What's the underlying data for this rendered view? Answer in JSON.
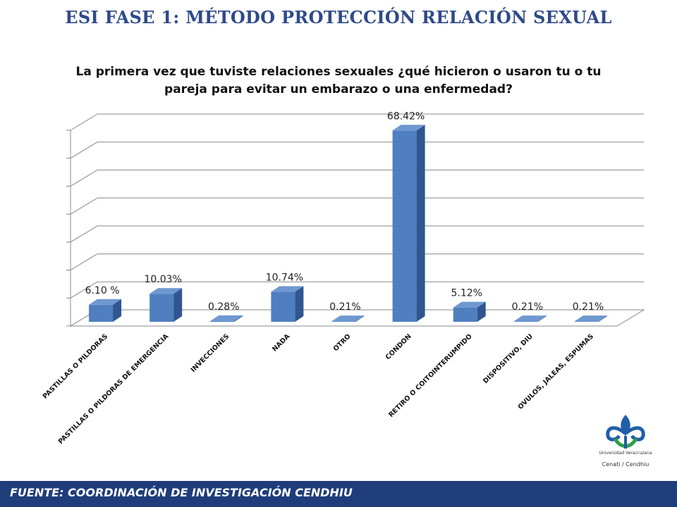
{
  "page_title": "ESI FASE 1: MÉTODO  PROTECCIÓN RELACIÓN SEXUAL",
  "footer": {
    "text": "FUENTE:   COORDINACIÓN DE INVESTIGACIÓN CENDHIU"
  },
  "logo": {
    "line1": "Universidad Veracruzana",
    "line2": "Cenati / Cendhiu",
    "colors": {
      "blue": "#1f5fa8",
      "green": "#2e9e4a"
    }
  },
  "chart_data": {
    "type": "bar",
    "title": "La primera vez que tuviste relaciones sexuales ¿qué hicieron o usaron tu o tu pareja para evitar un embarazo o una enfermedad?",
    "categories": [
      "PASTILLAS O PILDORAS",
      "PASTILLAS O PILDORAS DE EMERGENCIA",
      "INVECCIONES",
      "NADA",
      "OTRO",
      "CONDON",
      "RETIRO O COITOINTERUMPIDO",
      "DISPOSITIVO, DIU",
      "OVULOS, JALEAS, ESPUMAS"
    ],
    "values": [
      6.1,
      10.03,
      0.28,
      10.74,
      0.21,
      68.42,
      5.12,
      0.21,
      0.21
    ],
    "data_labels": [
      "6.10 %",
      "10.03%",
      "0.28%",
      "10.74%",
      "0.21%",
      "68.42%",
      "5.12%",
      "0.21%",
      "0.21%"
    ],
    "ylim": [
      0,
      70
    ],
    "grid": true,
    "colors": {
      "bar": "#4f7fc0",
      "bar_top": "#6e98d0",
      "bar_side": "#2f5690",
      "grid": "#888888"
    }
  }
}
